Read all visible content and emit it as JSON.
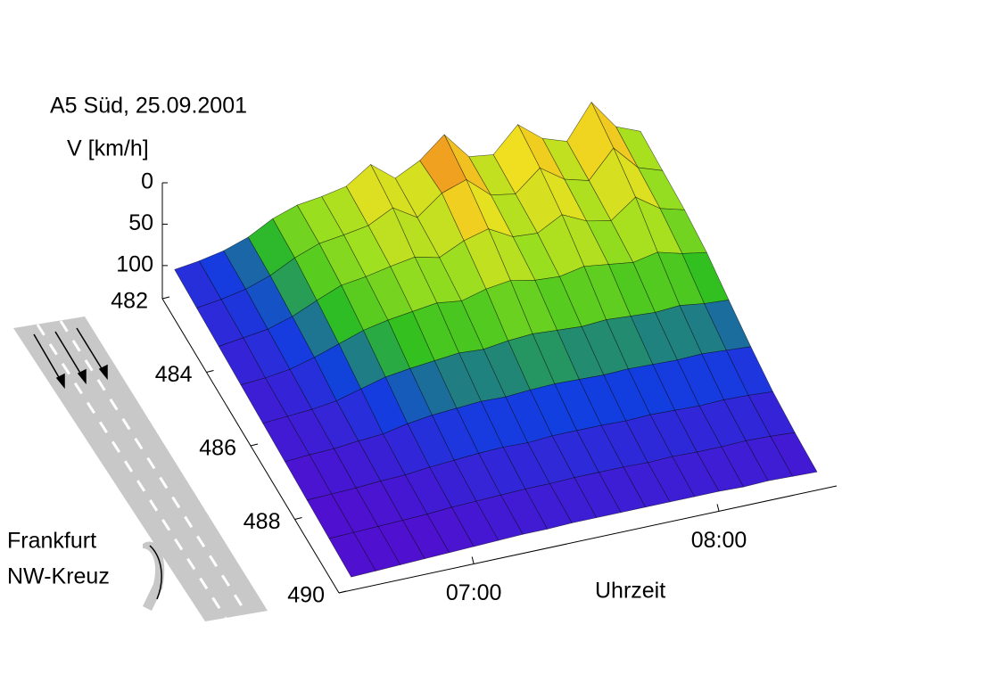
{
  "chart_data": {
    "type": "surface",
    "title": "A5 Süd, 25.09.2001",
    "zlabel": "V [km/h]",
    "xlabel": "Uhrzeit",
    "annotations": [
      "Frankfurt",
      "NW-Kreuz"
    ],
    "x": [
      6.5,
      6.6,
      6.7,
      6.8,
      6.9,
      7.0,
      7.1,
      7.2,
      7.3,
      7.4,
      7.5,
      7.6,
      7.7,
      7.8,
      7.9,
      8.0,
      8.1,
      8.2,
      8.3,
      8.4
    ],
    "y": [
      482,
      483,
      484,
      485,
      486,
      487,
      488,
      489,
      490
    ],
    "values": [
      [
        108,
        104,
        98,
        88,
        72,
        62,
        58,
        52,
        32,
        55,
        40,
        15,
        48,
        52,
        22,
        45,
        55,
        14,
        50,
        62
      ],
      [
        110,
        106,
        100,
        90,
        75,
        64,
        60,
        55,
        40,
        58,
        35,
        25,
        50,
        55,
        30,
        50,
        58,
        25,
        55,
        65
      ],
      [
        112,
        108,
        104,
        95,
        82,
        70,
        66,
        60,
        55,
        62,
        48,
        40,
        56,
        58,
        42,
        56,
        62,
        40,
        60,
        68
      ],
      [
        114,
        112,
        108,
        100,
        90,
        80,
        74,
        70,
        66,
        70,
        62,
        58,
        64,
        66,
        60,
        64,
        68,
        62,
        70,
        75
      ],
      [
        116,
        114,
        112,
        108,
        100,
        92,
        88,
        85,
        82,
        84,
        80,
        78,
        80,
        82,
        80,
        82,
        84,
        82,
        86,
        88
      ],
      [
        118,
        116,
        115,
        112,
        110,
        104,
        100,
        98,
        96,
        97,
        95,
        94,
        95,
        96,
        95,
        96,
        97,
        96,
        98,
        100
      ],
      [
        120,
        119,
        118,
        116,
        115,
        112,
        110,
        108,
        107,
        108,
        106,
        106,
        106,
        107,
        106,
        107,
        108,
        107,
        108,
        110
      ],
      [
        122,
        121,
        120,
        119,
        118,
        116,
        115,
        114,
        113,
        113,
        112,
        112,
        112,
        113,
        112,
        113,
        113,
        112,
        113,
        115
      ],
      [
        124,
        123,
        122,
        121,
        120,
        119,
        118,
        117,
        117,
        116,
        116,
        116,
        116,
        116,
        116,
        116,
        117,
        116,
        117,
        118
      ]
    ],
    "xlim": [
      6.45,
      8.48
    ],
    "xticks": [
      {
        "value": 7,
        "label": "07:00"
      },
      {
        "value": 8,
        "label": "08:00"
      }
    ],
    "ylim": [
      482,
      490
    ],
    "yticks": [
      482,
      484,
      486,
      488,
      490
    ],
    "zlim": [
      0,
      140
    ],
    "zticks": [
      0,
      50,
      100
    ],
    "colormap": [
      "#c81e00",
      "#f07020",
      "#f0e020",
      "#a0e020",
      "#30c020",
      "#1040e0",
      "#5010d0",
      "#5010d0"
    ]
  }
}
